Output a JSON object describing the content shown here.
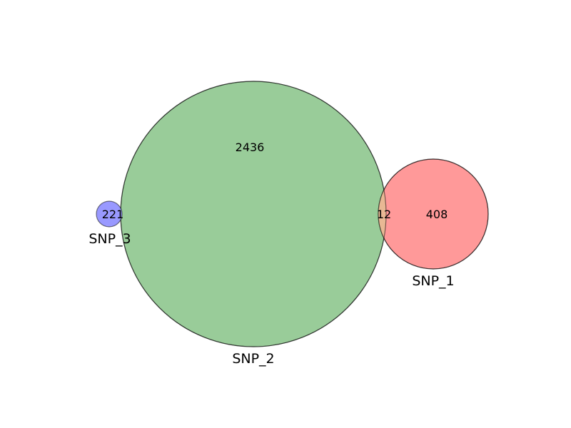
{
  "sets": {
    "snp1": {
      "label": "SNP_1",
      "only_count": "408",
      "color": "#ff9999"
    },
    "snp2": {
      "label": "SNP_2",
      "only_count": "2436",
      "color": "#99cc99"
    },
    "snp3": {
      "label": "SNP_3",
      "only_count": "221",
      "color": "#9999ff"
    }
  },
  "intersections": {
    "snp1_snp2": {
      "count": "12",
      "color": "#e8b894"
    }
  },
  "outline_color": "#000000"
}
